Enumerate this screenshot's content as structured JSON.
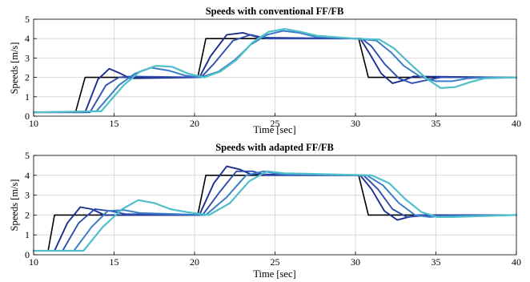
{
  "chart_data": [
    {
      "type": "line",
      "title": "Speeds with conventional FF/FB",
      "xlabel": "Time [sec]",
      "ylabel": "Speeds [m/s]",
      "xlim": [
        10,
        40
      ],
      "ylim": [
        0,
        5
      ],
      "xticks": [
        10,
        15,
        20,
        25,
        30,
        35,
        40
      ],
      "yticks": [
        0,
        1,
        2,
        3,
        4,
        5
      ],
      "grid": true,
      "series": [
        {
          "color": "#000000",
          "points": [
            [
              10,
              0.2
            ],
            [
              12.6,
              0.2
            ],
            [
              13.2,
              2.0
            ],
            [
              20.2,
              2.0
            ],
            [
              20.7,
              4.0
            ],
            [
              30.2,
              4.0
            ],
            [
              30.8,
              2.0
            ],
            [
              40,
              2.0
            ]
          ]
        },
        {
          "color": "#1c2f8f",
          "points": [
            [
              10,
              0.2
            ],
            [
              13.2,
              0.2
            ],
            [
              14.0,
              1.9
            ],
            [
              14.7,
              2.45
            ],
            [
              15.4,
              2.2
            ],
            [
              16.0,
              1.95
            ],
            [
              20.3,
              2.0
            ],
            [
              21.0,
              3.1
            ],
            [
              22.0,
              4.2
            ],
            [
              23.0,
              4.3
            ],
            [
              24.0,
              4.05
            ],
            [
              30.3,
              4.0
            ],
            [
              30.9,
              3.2
            ],
            [
              31.6,
              2.2
            ],
            [
              32.3,
              1.7
            ],
            [
              33.0,
              1.85
            ],
            [
              33.6,
              2.05
            ],
            [
              40,
              2.0
            ]
          ]
        },
        {
          "color": "#2e4fb0",
          "points": [
            [
              10,
              0.2
            ],
            [
              13.5,
              0.2
            ],
            [
              14.5,
              1.6
            ],
            [
              15.3,
              2.0
            ],
            [
              16.0,
              2.05
            ],
            [
              20.4,
              2.0
            ],
            [
              21.2,
              2.7
            ],
            [
              22.4,
              3.9
            ],
            [
              23.5,
              4.2
            ],
            [
              24.5,
              4.0
            ],
            [
              30.4,
              4.0
            ],
            [
              31.0,
              3.6
            ],
            [
              31.8,
              2.7
            ],
            [
              32.7,
              1.95
            ],
            [
              33.5,
              1.7
            ],
            [
              34.4,
              1.85
            ],
            [
              35.3,
              2.0
            ],
            [
              40,
              2.0
            ]
          ]
        },
        {
          "color": "#3a7dc8",
          "points": [
            [
              10,
              0.2
            ],
            [
              13.9,
              0.25
            ],
            [
              15.3,
              1.6
            ],
            [
              16.3,
              2.2
            ],
            [
              17.3,
              2.5
            ],
            [
              18.4,
              2.35
            ],
            [
              19.4,
              2.1
            ],
            [
              20.4,
              2.0
            ],
            [
              21.5,
              2.3
            ],
            [
              22.5,
              2.9
            ],
            [
              23.5,
              3.7
            ],
            [
              24.5,
              4.2
            ],
            [
              25.5,
              4.4
            ],
            [
              26.5,
              4.3
            ],
            [
              27.5,
              4.1
            ],
            [
              30.0,
              4.0
            ],
            [
              31.3,
              3.9
            ],
            [
              32.2,
              3.3
            ],
            [
              33.0,
              2.6
            ],
            [
              34.0,
              2.05
            ],
            [
              35.0,
              1.8
            ],
            [
              36.0,
              1.8
            ],
            [
              37.0,
              1.95
            ],
            [
              38.0,
              2.0
            ],
            [
              40,
              2.0
            ]
          ]
        },
        {
          "color": "#4fbfc9",
          "points": [
            [
              10,
              0.2
            ],
            [
              14.2,
              0.25
            ],
            [
              15.6,
              1.6
            ],
            [
              16.6,
              2.3
            ],
            [
              17.6,
              2.6
            ],
            [
              18.6,
              2.55
            ],
            [
              19.6,
              2.2
            ],
            [
              20.6,
              2.0
            ],
            [
              21.6,
              2.3
            ],
            [
              22.6,
              2.9
            ],
            [
              23.6,
              3.8
            ],
            [
              24.6,
              4.35
            ],
            [
              25.6,
              4.5
            ],
            [
              26.6,
              4.35
            ],
            [
              27.6,
              4.15
            ],
            [
              30.0,
              4.0
            ],
            [
              31.5,
              3.95
            ],
            [
              32.4,
              3.5
            ],
            [
              33.4,
              2.7
            ],
            [
              34.4,
              1.95
            ],
            [
              35.3,
              1.45
            ],
            [
              36.2,
              1.5
            ],
            [
              37.1,
              1.75
            ],
            [
              38.0,
              1.95
            ],
            [
              40,
              2.0
            ]
          ]
        }
      ]
    },
    {
      "type": "line",
      "title": "Speeds with adapted FF/FB",
      "xlabel": "Time [sec]",
      "ylabel": "Speeds [m/s]",
      "xlim": [
        10,
        40
      ],
      "ylim": [
        0,
        5
      ],
      "xticks": [
        10,
        15,
        20,
        25,
        30,
        35,
        40
      ],
      "yticks": [
        0,
        1,
        2,
        3,
        4,
        5
      ],
      "grid": true,
      "series": [
        {
          "color": "#000000",
          "points": [
            [
              10,
              0.2
            ],
            [
              10.9,
              0.2
            ],
            [
              11.3,
              2.0
            ],
            [
              20.2,
              2.0
            ],
            [
              20.7,
              4.0
            ],
            [
              30.2,
              4.0
            ],
            [
              30.8,
              2.0
            ],
            [
              40,
              2.0
            ]
          ]
        },
        {
          "color": "#1c2f8f",
          "points": [
            [
              10,
              0.2
            ],
            [
              11.3,
              0.2
            ],
            [
              12.1,
              1.6
            ],
            [
              12.9,
              2.4
            ],
            [
              13.6,
              2.3
            ],
            [
              14.4,
              2.0
            ],
            [
              20.3,
              2.0
            ],
            [
              21.2,
              3.6
            ],
            [
              22.0,
              4.45
            ],
            [
              22.8,
              4.3
            ],
            [
              23.5,
              4.05
            ],
            [
              30.3,
              4.0
            ],
            [
              31.0,
              3.3
            ],
            [
              31.8,
              2.2
            ],
            [
              32.6,
              1.75
            ],
            [
              33.3,
              1.9
            ],
            [
              34.0,
              2.0
            ],
            [
              40,
              2.0
            ]
          ]
        },
        {
          "color": "#2e4fb0",
          "points": [
            [
              10,
              0.2
            ],
            [
              11.8,
              0.2
            ],
            [
              12.8,
              1.6
            ],
            [
              13.8,
              2.3
            ],
            [
              14.8,
              2.2
            ],
            [
              15.7,
              2.05
            ],
            [
              20.5,
              2.0
            ],
            [
              21.6,
              3.2
            ],
            [
              22.6,
              4.2
            ],
            [
              23.6,
              4.2
            ],
            [
              24.5,
              4.0
            ],
            [
              30.5,
              4.0
            ],
            [
              31.4,
              3.3
            ],
            [
              32.3,
              2.3
            ],
            [
              33.2,
              1.9
            ],
            [
              34.0,
              1.95
            ],
            [
              40,
              2.0
            ]
          ]
        },
        {
          "color": "#3a7dc8",
          "points": [
            [
              10,
              0.2
            ],
            [
              12.5,
              0.2
            ],
            [
              13.6,
              1.4
            ],
            [
              14.6,
              2.2
            ],
            [
              15.6,
              2.25
            ],
            [
              16.6,
              2.1
            ],
            [
              20.7,
              2.0
            ],
            [
              22.0,
              2.9
            ],
            [
              23.2,
              4.0
            ],
            [
              24.3,
              4.2
            ],
            [
              25.4,
              4.05
            ],
            [
              30.7,
              4.0
            ],
            [
              31.7,
              3.5
            ],
            [
              32.7,
              2.6
            ],
            [
              33.7,
              2.0
            ],
            [
              34.6,
              1.9
            ],
            [
              35.5,
              1.95
            ],
            [
              40,
              2.0
            ]
          ]
        },
        {
          "color": "#4fbfc9",
          "points": [
            [
              10,
              0.2
            ],
            [
              13.1,
              0.2
            ],
            [
              14.3,
              1.4
            ],
            [
              15.5,
              2.3
            ],
            [
              16.5,
              2.75
            ],
            [
              17.5,
              2.6
            ],
            [
              18.5,
              2.3
            ],
            [
              19.5,
              2.15
            ],
            [
              20.9,
              2.0
            ],
            [
              22.2,
              2.6
            ],
            [
              23.4,
              3.7
            ],
            [
              24.5,
              4.2
            ],
            [
              25.6,
              4.1
            ],
            [
              31.0,
              4.0
            ],
            [
              32.1,
              3.6
            ],
            [
              33.1,
              2.8
            ],
            [
              34.1,
              2.15
            ],
            [
              35.1,
              1.9
            ],
            [
              36.0,
              1.9
            ],
            [
              40,
              2.0
            ]
          ]
        }
      ]
    }
  ]
}
